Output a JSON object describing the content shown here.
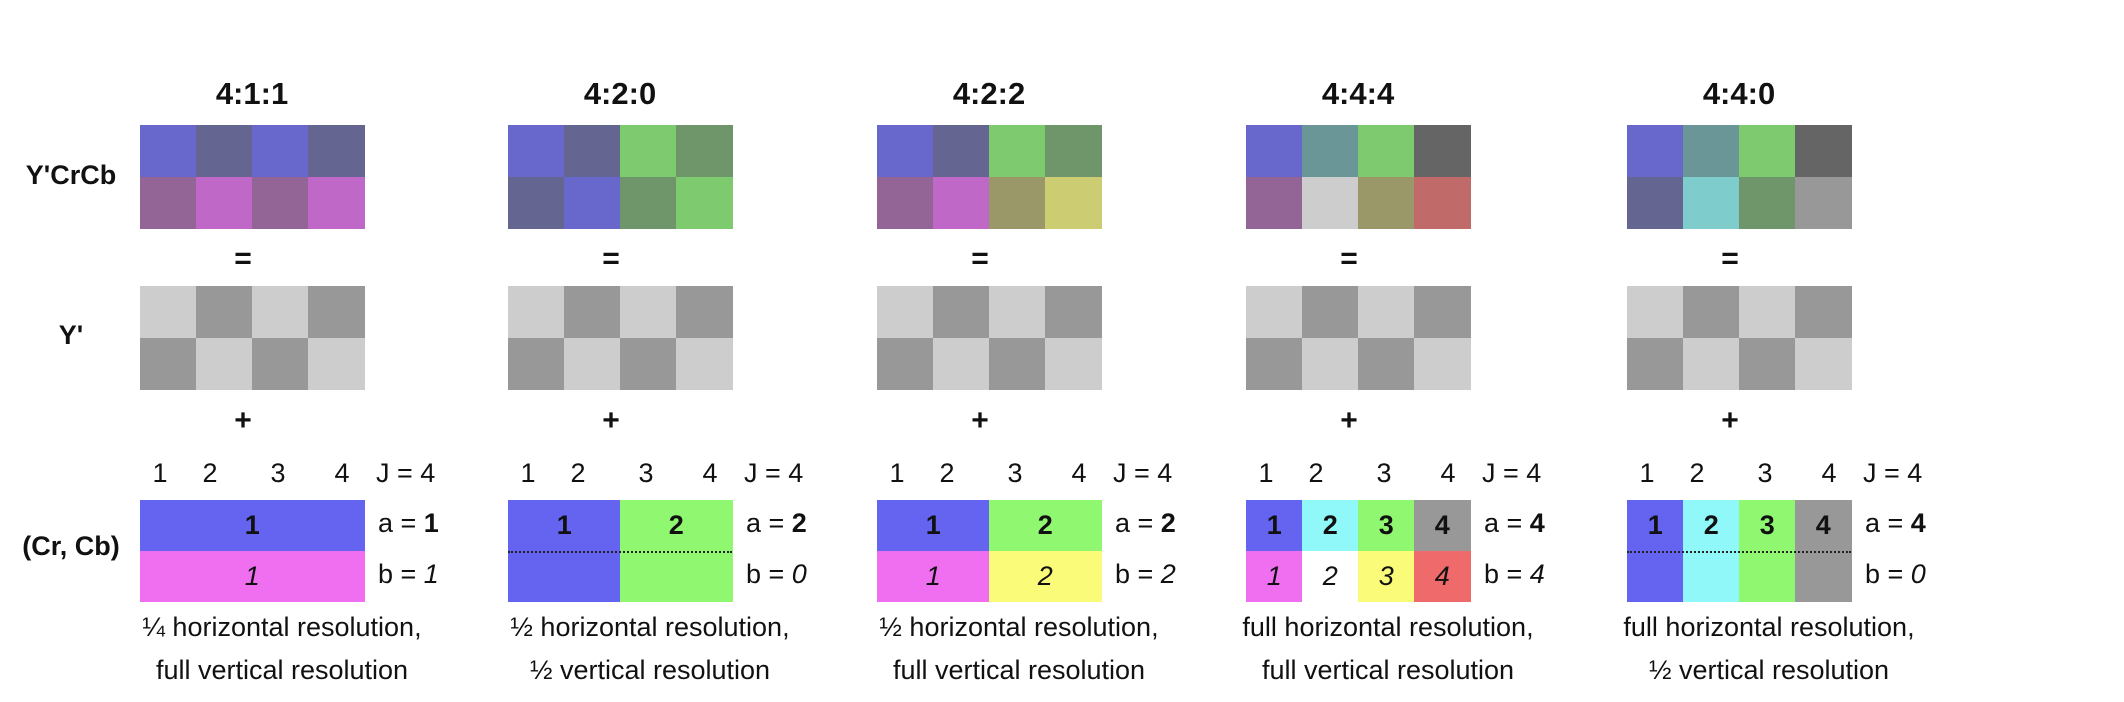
{
  "row_labels": {
    "ycrcb": "Y'CrCb",
    "y": "Y'",
    "crcb": "(Cr, Cb)"
  },
  "operators": {
    "equals": "=",
    "plus": "+"
  },
  "index_labels": [
    "1",
    "2",
    "3",
    "4"
  ],
  "j_label": "J = 4",
  "a_prefix": "a = ",
  "b_prefix": "b = ",
  "luma_pattern": [
    [
      "#cdcdcd",
      "#989898",
      "#cdcdcd",
      "#989898"
    ],
    [
      "#989898",
      "#cdcdcd",
      "#989898",
      "#cdcdcd"
    ]
  ],
  "schemes": [
    {
      "title": "4:1:1",
      "ycrcb": [
        [
          "#6868cc",
          "#656592",
          "#6868cc",
          "#656592"
        ],
        [
          "#926596",
          "#c068c8",
          "#926596",
          "#c068c8"
        ]
      ],
      "chroma_top": [
        {
          "label": "1",
          "color": "#6464f0",
          "span": 4
        }
      ],
      "chroma_bottom": [
        {
          "label": "1",
          "color": "#ef6ff0",
          "span": 4
        }
      ],
      "dotted": false,
      "a": "1",
      "b": "1",
      "desc1": "¼ horizontal resolution,",
      "desc2": "full vertical resolution"
    },
    {
      "title": "4:2:0",
      "ycrcb": [
        [
          "#6868cc",
          "#656592",
          "#7ecb6f",
          "#6e966a"
        ],
        [
          "#656592",
          "#6868cc",
          "#6e966a",
          "#7ecb6f"
        ]
      ],
      "chroma_top": [
        {
          "label": "1",
          "color": "#6464f0",
          "span": 2
        },
        {
          "label": "2",
          "color": "#90f870",
          "span": 2
        }
      ],
      "chroma_bottom": [
        {
          "label": "",
          "color": "#6464f0",
          "span": 2
        },
        {
          "label": "",
          "color": "#90f870",
          "span": 2
        }
      ],
      "dotted": true,
      "a": "2",
      "b": "0",
      "desc1": "½ horizontal resolution,",
      "desc2": "½ vertical resolution"
    },
    {
      "title": "4:2:2",
      "ycrcb": [
        [
          "#6868cc",
          "#656592",
          "#7ecb6f",
          "#6e966a"
        ],
        [
          "#926596",
          "#c068c8",
          "#9a9868",
          "#cccc72"
        ]
      ],
      "chroma_top": [
        {
          "label": "1",
          "color": "#6464f0",
          "span": 2
        },
        {
          "label": "2",
          "color": "#90f870",
          "span": 2
        }
      ],
      "chroma_bottom": [
        {
          "label": "1",
          "color": "#ef6ff0",
          "span": 2
        },
        {
          "label": "2",
          "color": "#fbfb7a",
          "span": 2
        }
      ],
      "dotted": false,
      "a": "2",
      "b": "2",
      "desc1": "½ horizontal resolution,",
      "desc2": "full vertical resolution"
    },
    {
      "title": "4:4:4",
      "ycrcb": [
        [
          "#6868cc",
          "#6a9698",
          "#7ecb6f",
          "#656565"
        ],
        [
          "#926596",
          "#cdcdcd",
          "#9a9868",
          "#c06a6a"
        ]
      ],
      "chroma_top": [
        {
          "label": "1",
          "color": "#6464f0",
          "span": 1
        },
        {
          "label": "2",
          "color": "#90f8f8",
          "span": 1
        },
        {
          "label": "3",
          "color": "#90f870",
          "span": 1
        },
        {
          "label": "4",
          "color": "#989898",
          "span": 1
        }
      ],
      "chroma_bottom": [
        {
          "label": "1",
          "color": "#ef6ff0",
          "span": 1
        },
        {
          "label": "2",
          "color": "#ffffff",
          "span": 1
        },
        {
          "label": "3",
          "color": "#fbfb7a",
          "span": 1
        },
        {
          "label": "4",
          "color": "#ef6b6b",
          "span": 1
        }
      ],
      "dotted": false,
      "a": "4",
      "b": "4",
      "desc1": "full horizontal resolution,",
      "desc2": "full vertical resolution"
    },
    {
      "title": "4:4:0",
      "ycrcb": [
        [
          "#6868cc",
          "#6a9698",
          "#7ecb6f",
          "#656565"
        ],
        [
          "#656592",
          "#7ecccc",
          "#6e966a",
          "#989898"
        ]
      ],
      "chroma_top": [
        {
          "label": "1",
          "color": "#6464f0",
          "span": 1
        },
        {
          "label": "2",
          "color": "#90f8f8",
          "span": 1
        },
        {
          "label": "3",
          "color": "#90f870",
          "span": 1
        },
        {
          "label": "4",
          "color": "#989898",
          "span": 1
        }
      ],
      "chroma_bottom": [
        {
          "label": "",
          "color": "#6464f0",
          "span": 1
        },
        {
          "label": "",
          "color": "#90f8f8",
          "span": 1
        },
        {
          "label": "",
          "color": "#90f870",
          "span": 1
        },
        {
          "label": "",
          "color": "#989898",
          "span": 1
        }
      ],
      "dotted": true,
      "a": "4",
      "b": "0",
      "desc1": "full horizontal resolution,",
      "desc2": "½ vertical resolution"
    }
  ]
}
